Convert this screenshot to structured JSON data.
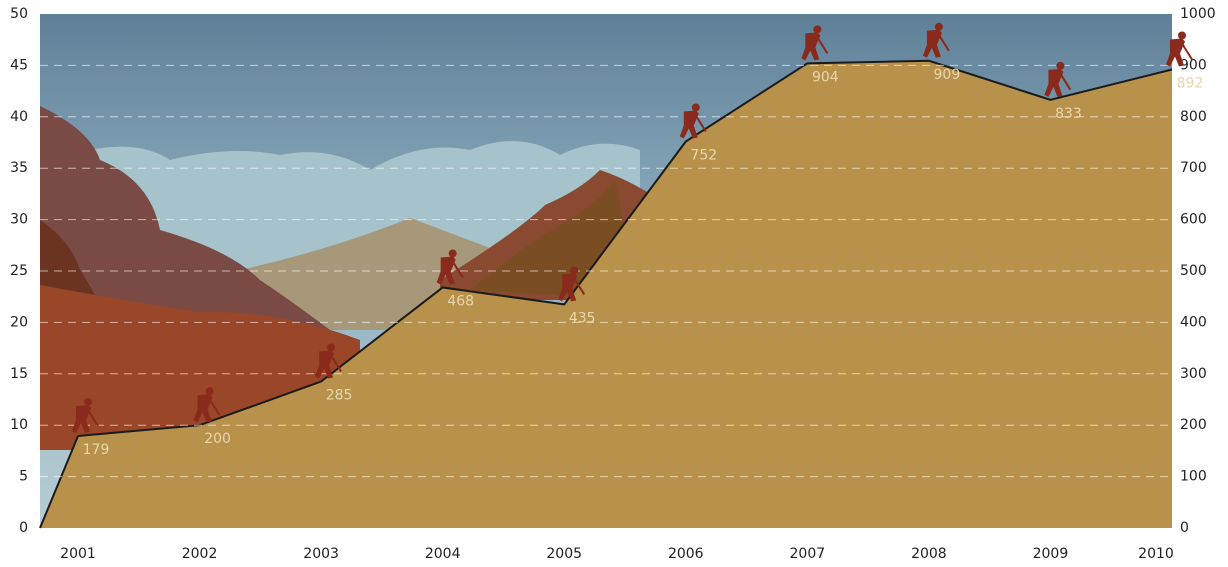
{
  "chart_data": {
    "type": "area",
    "categories": [
      "2001",
      "2002",
      "2003",
      "2004",
      "2005",
      "2006",
      "2007",
      "2008",
      "2009",
      "2010"
    ],
    "values": [
      179,
      200,
      285,
      468,
      435,
      752,
      904,
      909,
      833,
      892
    ],
    "axis": "y2",
    "color": "#b8914b",
    "line_color": "#1b1b1b",
    "ylim": [
      0,
      50
    ],
    "yticks": [
      0,
      5,
      10,
      15,
      20,
      25,
      30,
      35,
      40,
      45,
      50
    ],
    "y2lim": [
      0,
      1000
    ],
    "y2ticks": [
      0,
      100,
      200,
      300,
      400,
      500,
      600,
      700,
      800,
      900,
      1000
    ],
    "grid": true
  }
}
